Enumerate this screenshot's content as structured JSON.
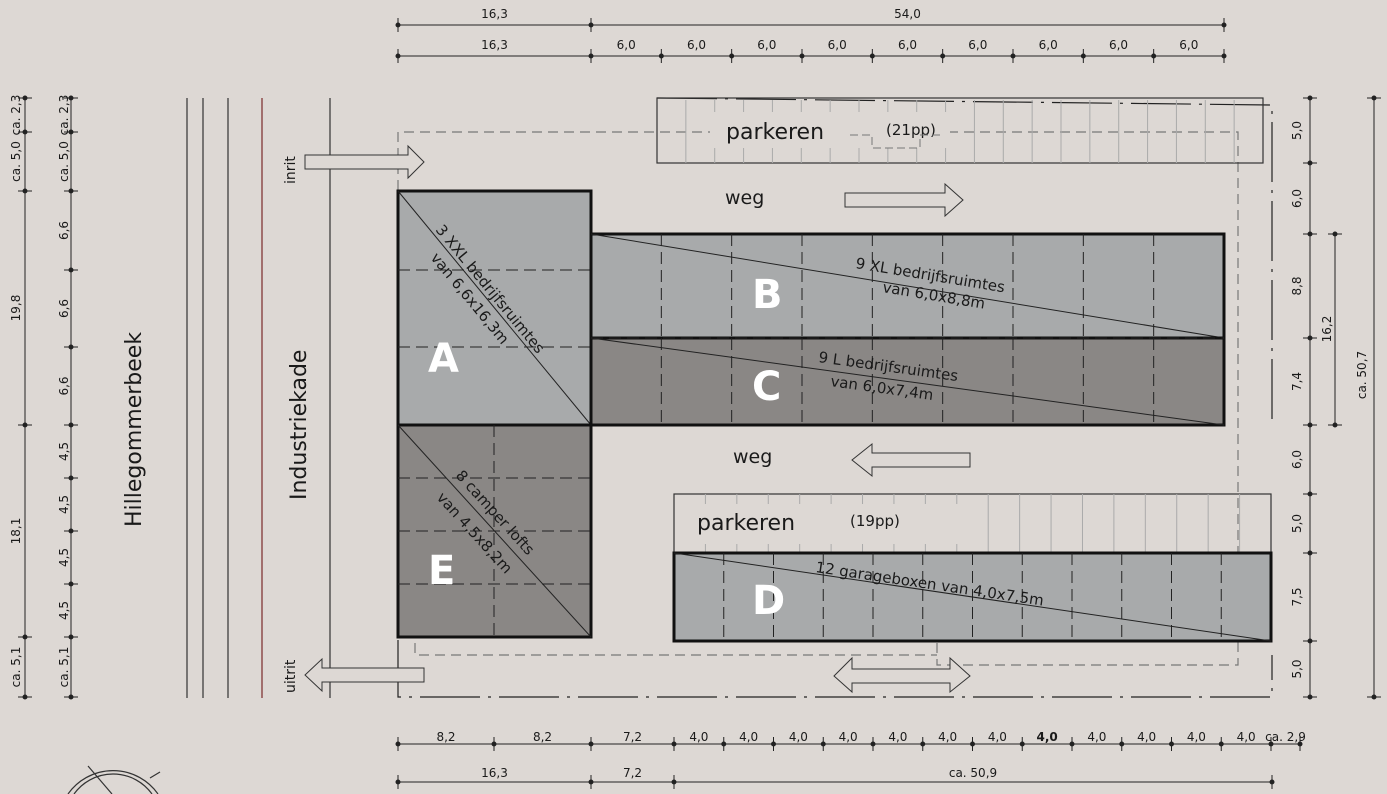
{
  "colors": {
    "background": "#ddd8d4",
    "light_block": "#a8aaab",
    "dark_block": "#8a8785",
    "road_line": "#7a2a2a"
  },
  "dimensions": {
    "top_row1": [
      "16,3",
      "54,0"
    ],
    "top_row2": [
      "16,3",
      "6,0",
      "6,0",
      "6,0",
      "6,0",
      "6,0",
      "6,0",
      "6,0",
      "6,0",
      "6,0"
    ],
    "bottom_row1": [
      "8,2",
      "8,2",
      "7,2",
      "4,0",
      "4,0",
      "4,0",
      "4,0",
      "4,0",
      "4,0",
      "4,0",
      "4,0",
      "4,0",
      "4,0",
      "4,0",
      "4,0",
      "ca. 2,9"
    ],
    "bottom_row2": [
      "16,3",
      "7,2",
      "ca. 50,9"
    ],
    "left_outer": [
      "ca. 2,3",
      "ca. 5,0",
      "19,8",
      "18,1",
      "ca. 5,1"
    ],
    "left_inner": [
      "ca. 2,3",
      "ca. 5,0",
      "6,6",
      "6,6",
      "6,6",
      "4,5",
      "4,5",
      "4,5",
      "4,5",
      "ca. 5,1"
    ],
    "right_inner": [
      "5,0",
      "6,0",
      "8,8",
      "7,4",
      "6,0",
      "5,0",
      "7,5",
      "5,0"
    ],
    "right_mid": "16,2",
    "right_outer": "ca. 50,7"
  },
  "labels": {
    "river": "Hillegommerbeek",
    "quay": "Industriekade",
    "entry": "inrit",
    "exit": "uitrit",
    "parking_top": "parkeren",
    "parking_top_count": "(21pp)",
    "parking_bottom": "parkeren",
    "parking_bottom_count": "(19pp)",
    "road_top": "weg",
    "road_bottom": "weg"
  },
  "blocks": {
    "A": {
      "letter": "A",
      "line1": "3 XXL bedrijfsruimtes",
      "line2": "van 6,6x16,3m"
    },
    "B": {
      "letter": "B",
      "line1": "9 XL bedrijfsruimtes",
      "line2": "van 6,0x8,8m"
    },
    "C": {
      "letter": "C",
      "line1": "9 L bedrijfsruimtes",
      "line2": "van 6,0x7,4m"
    },
    "D": {
      "letter": "D",
      "line1": "12 garageboxen van 4,0x7,5m"
    },
    "E": {
      "letter": "E",
      "line1": "8 camper lofts",
      "line2": "van 4,5x8,2m"
    }
  }
}
